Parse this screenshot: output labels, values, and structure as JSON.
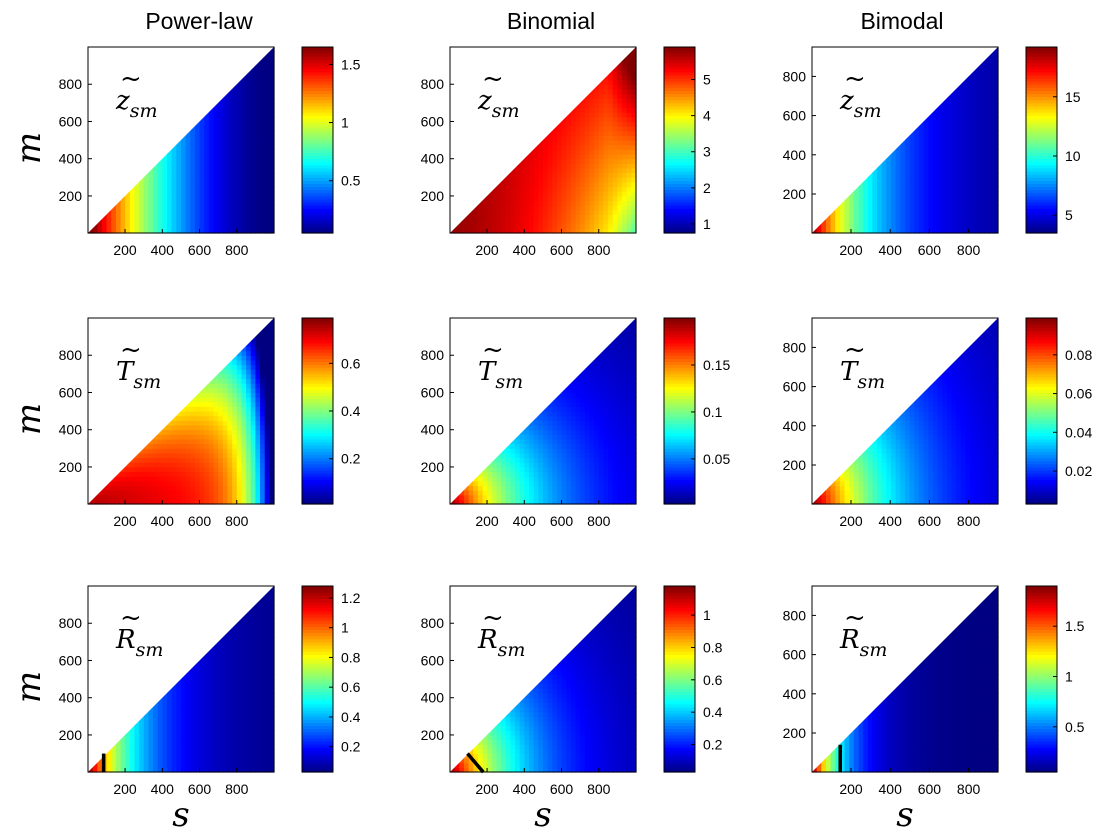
{
  "columns": [
    "Power-law",
    "Binomial",
    "Bimodal"
  ],
  "y_axis_label": "m",
  "x_axis_label": "s",
  "row_labels": [
    {
      "main": "z",
      "accent": "~",
      "sub": "sm"
    },
    {
      "main": "T",
      "accent": "~",
      "sub": "sm"
    },
    {
      "main": "R",
      "accent": "~",
      "sub": "sm"
    }
  ],
  "colormap": "jet",
  "chart_data": [
    {
      "type": "heatmap",
      "title": "Power-law",
      "panel_label": "z̃_sm",
      "xlabel": "",
      "ylabel": "m",
      "xlim": [
        1,
        1000
      ],
      "ylim": [
        1,
        1000
      ],
      "xticks": [
        200,
        400,
        600,
        800
      ],
      "yticks": [
        200,
        400,
        600,
        800
      ],
      "colorbar": {
        "range": [
          0.05,
          1.65
        ],
        "ticks": [
          "0.5",
          "1",
          "1.5"
        ],
        "tick_values": [
          0.5,
          1,
          1.5
        ]
      },
      "shape": "upper-left triangle (m <= s)",
      "pattern": "max at small s, decreasing with s"
    },
    {
      "type": "heatmap",
      "title": "Binomial",
      "panel_label": "z̃_sm",
      "xlabel": "",
      "ylabel": "",
      "xlim": [
        1,
        1000
      ],
      "ylim": [
        1,
        1000
      ],
      "xticks": [
        200,
        400,
        600,
        800
      ],
      "yticks": [
        200,
        400,
        600,
        800
      ],
      "colorbar": {
        "range": [
          0.75,
          5.9
        ],
        "ticks": [
          "1",
          "2",
          "3",
          "4",
          "5"
        ],
        "tick_values": [
          1,
          2,
          3,
          4,
          5
        ]
      },
      "shape": "upper-left triangle (m <= s)",
      "pattern": "high (~5) almost everywhere, drops near s=1000, m small"
    },
    {
      "type": "heatmap",
      "title": "Bimodal",
      "panel_label": "z̃_sm",
      "xlabel": "",
      "ylabel": "",
      "xlim": [
        1,
        950
      ],
      "ylim": [
        1,
        950
      ],
      "xticks": [
        200,
        400,
        600,
        800
      ],
      "yticks": [
        200,
        400,
        600,
        800
      ],
      "colorbar": {
        "range": [
          3.5,
          19.2
        ],
        "ticks": [
          "5",
          "10",
          "15"
        ],
        "tick_values": [
          5,
          10,
          15
        ]
      },
      "shape": "upper-left triangle (m <= s)",
      "pattern": "max at small s, decreasing quickly"
    },
    {
      "type": "heatmap",
      "title": "",
      "panel_label": "T̃_sm",
      "xlabel": "",
      "ylabel": "m",
      "xlim": [
        1,
        1000
      ],
      "ylim": [
        1,
        1000
      ],
      "xticks": [
        200,
        400,
        600,
        800
      ],
      "yticks": [
        200,
        400,
        600,
        800
      ],
      "colorbar": {
        "range": [
          0.01,
          0.79
        ],
        "ticks": [
          "0.2",
          "0.4",
          "0.6"
        ],
        "tick_values": [
          0.2,
          0.4,
          0.6
        ]
      },
      "shape": "upper-left triangle (m <= s)",
      "pattern": "high at small m, falls to zero near s=1000"
    },
    {
      "type": "heatmap",
      "title": "",
      "panel_label": "T̃_sm",
      "xlabel": "",
      "ylabel": "",
      "xlim": [
        1,
        1000
      ],
      "ylim": [
        1,
        1000
      ],
      "xticks": [
        200,
        400,
        600,
        800
      ],
      "yticks": [
        200,
        400,
        600,
        800
      ],
      "colorbar": {
        "range": [
          0.002,
          0.2
        ],
        "ticks": [
          "0.05",
          "0.1",
          "0.15"
        ],
        "tick_values": [
          0.05,
          0.1,
          0.15
        ]
      },
      "shape": "upper-left triangle (m <= s)",
      "pattern": "max at origin, radial decay"
    },
    {
      "type": "heatmap",
      "title": "",
      "panel_label": "T̃_sm",
      "xlabel": "",
      "ylabel": "",
      "xlim": [
        1,
        950
      ],
      "ylim": [
        1,
        950
      ],
      "xticks": [
        200,
        400,
        600,
        800
      ],
      "yticks": [
        200,
        400,
        600,
        800
      ],
      "colorbar": {
        "range": [
          0.003,
          0.099
        ],
        "ticks": [
          "0.02",
          "0.04",
          "0.06",
          "0.08"
        ],
        "tick_values": [
          0.02,
          0.04,
          0.06,
          0.08
        ]
      },
      "shape": "upper-left triangle (m <= s)",
      "pattern": "max at origin, radial decay"
    },
    {
      "type": "heatmap",
      "title": "",
      "panel_label": "R̃_sm",
      "xlabel": "s",
      "ylabel": "m",
      "xlim": [
        1,
        1000
      ],
      "ylim": [
        1,
        1000
      ],
      "xticks": [
        200,
        400,
        600,
        800
      ],
      "yticks": [
        200,
        400,
        600,
        800
      ],
      "colorbar": {
        "range": [
          0.03,
          1.28
        ],
        "ticks": [
          "0.2",
          "0.4",
          "0.6",
          "0.8",
          "1",
          "1.2"
        ],
        "tick_values": [
          0.2,
          0.4,
          0.6,
          0.8,
          1,
          1.2
        ]
      },
      "shape": "upper-left triangle (m <= s)",
      "pattern": "max at small s, fast decay",
      "contour": {
        "from": [
          85,
          0
        ],
        "to": [
          85,
          100
        ]
      }
    },
    {
      "type": "heatmap",
      "title": "",
      "panel_label": "R̃_sm",
      "xlabel": "s",
      "ylabel": "",
      "xlim": [
        1,
        1000
      ],
      "ylim": [
        1,
        1000
      ],
      "xticks": [
        200,
        400,
        600,
        800
      ],
      "yticks": [
        200,
        400,
        600,
        800
      ],
      "colorbar": {
        "range": [
          0.03,
          1.18
        ],
        "ticks": [
          "0.2",
          "0.4",
          "0.6",
          "0.8",
          "1"
        ],
        "tick_values": [
          0.2,
          0.4,
          0.6,
          0.8,
          1
        ]
      },
      "shape": "upper-left triangle (m <= s)",
      "pattern": "max at origin, radial decay",
      "contour": {
        "from": [
          95,
          100
        ],
        "to": [
          180,
          0
        ]
      }
    },
    {
      "type": "heatmap",
      "title": "",
      "panel_label": "R̃_sm",
      "xlabel": "s",
      "ylabel": "",
      "xlim": [
        1,
        950
      ],
      "ylim": [
        1,
        950
      ],
      "xticks": [
        200,
        400,
        600,
        800
      ],
      "yticks": [
        200,
        400,
        600,
        800
      ],
      "colorbar": {
        "range": [
          0.05,
          1.9
        ],
        "ticks": [
          "0.5",
          "1",
          "1.5"
        ],
        "tick_values": [
          0.5,
          1,
          1.5
        ]
      },
      "shape": "upper-left triangle (m <= s)",
      "pattern": "max at small s, very fast decay",
      "contour": {
        "from": [
          145,
          0
        ],
        "to": [
          145,
          140
        ]
      }
    }
  ]
}
